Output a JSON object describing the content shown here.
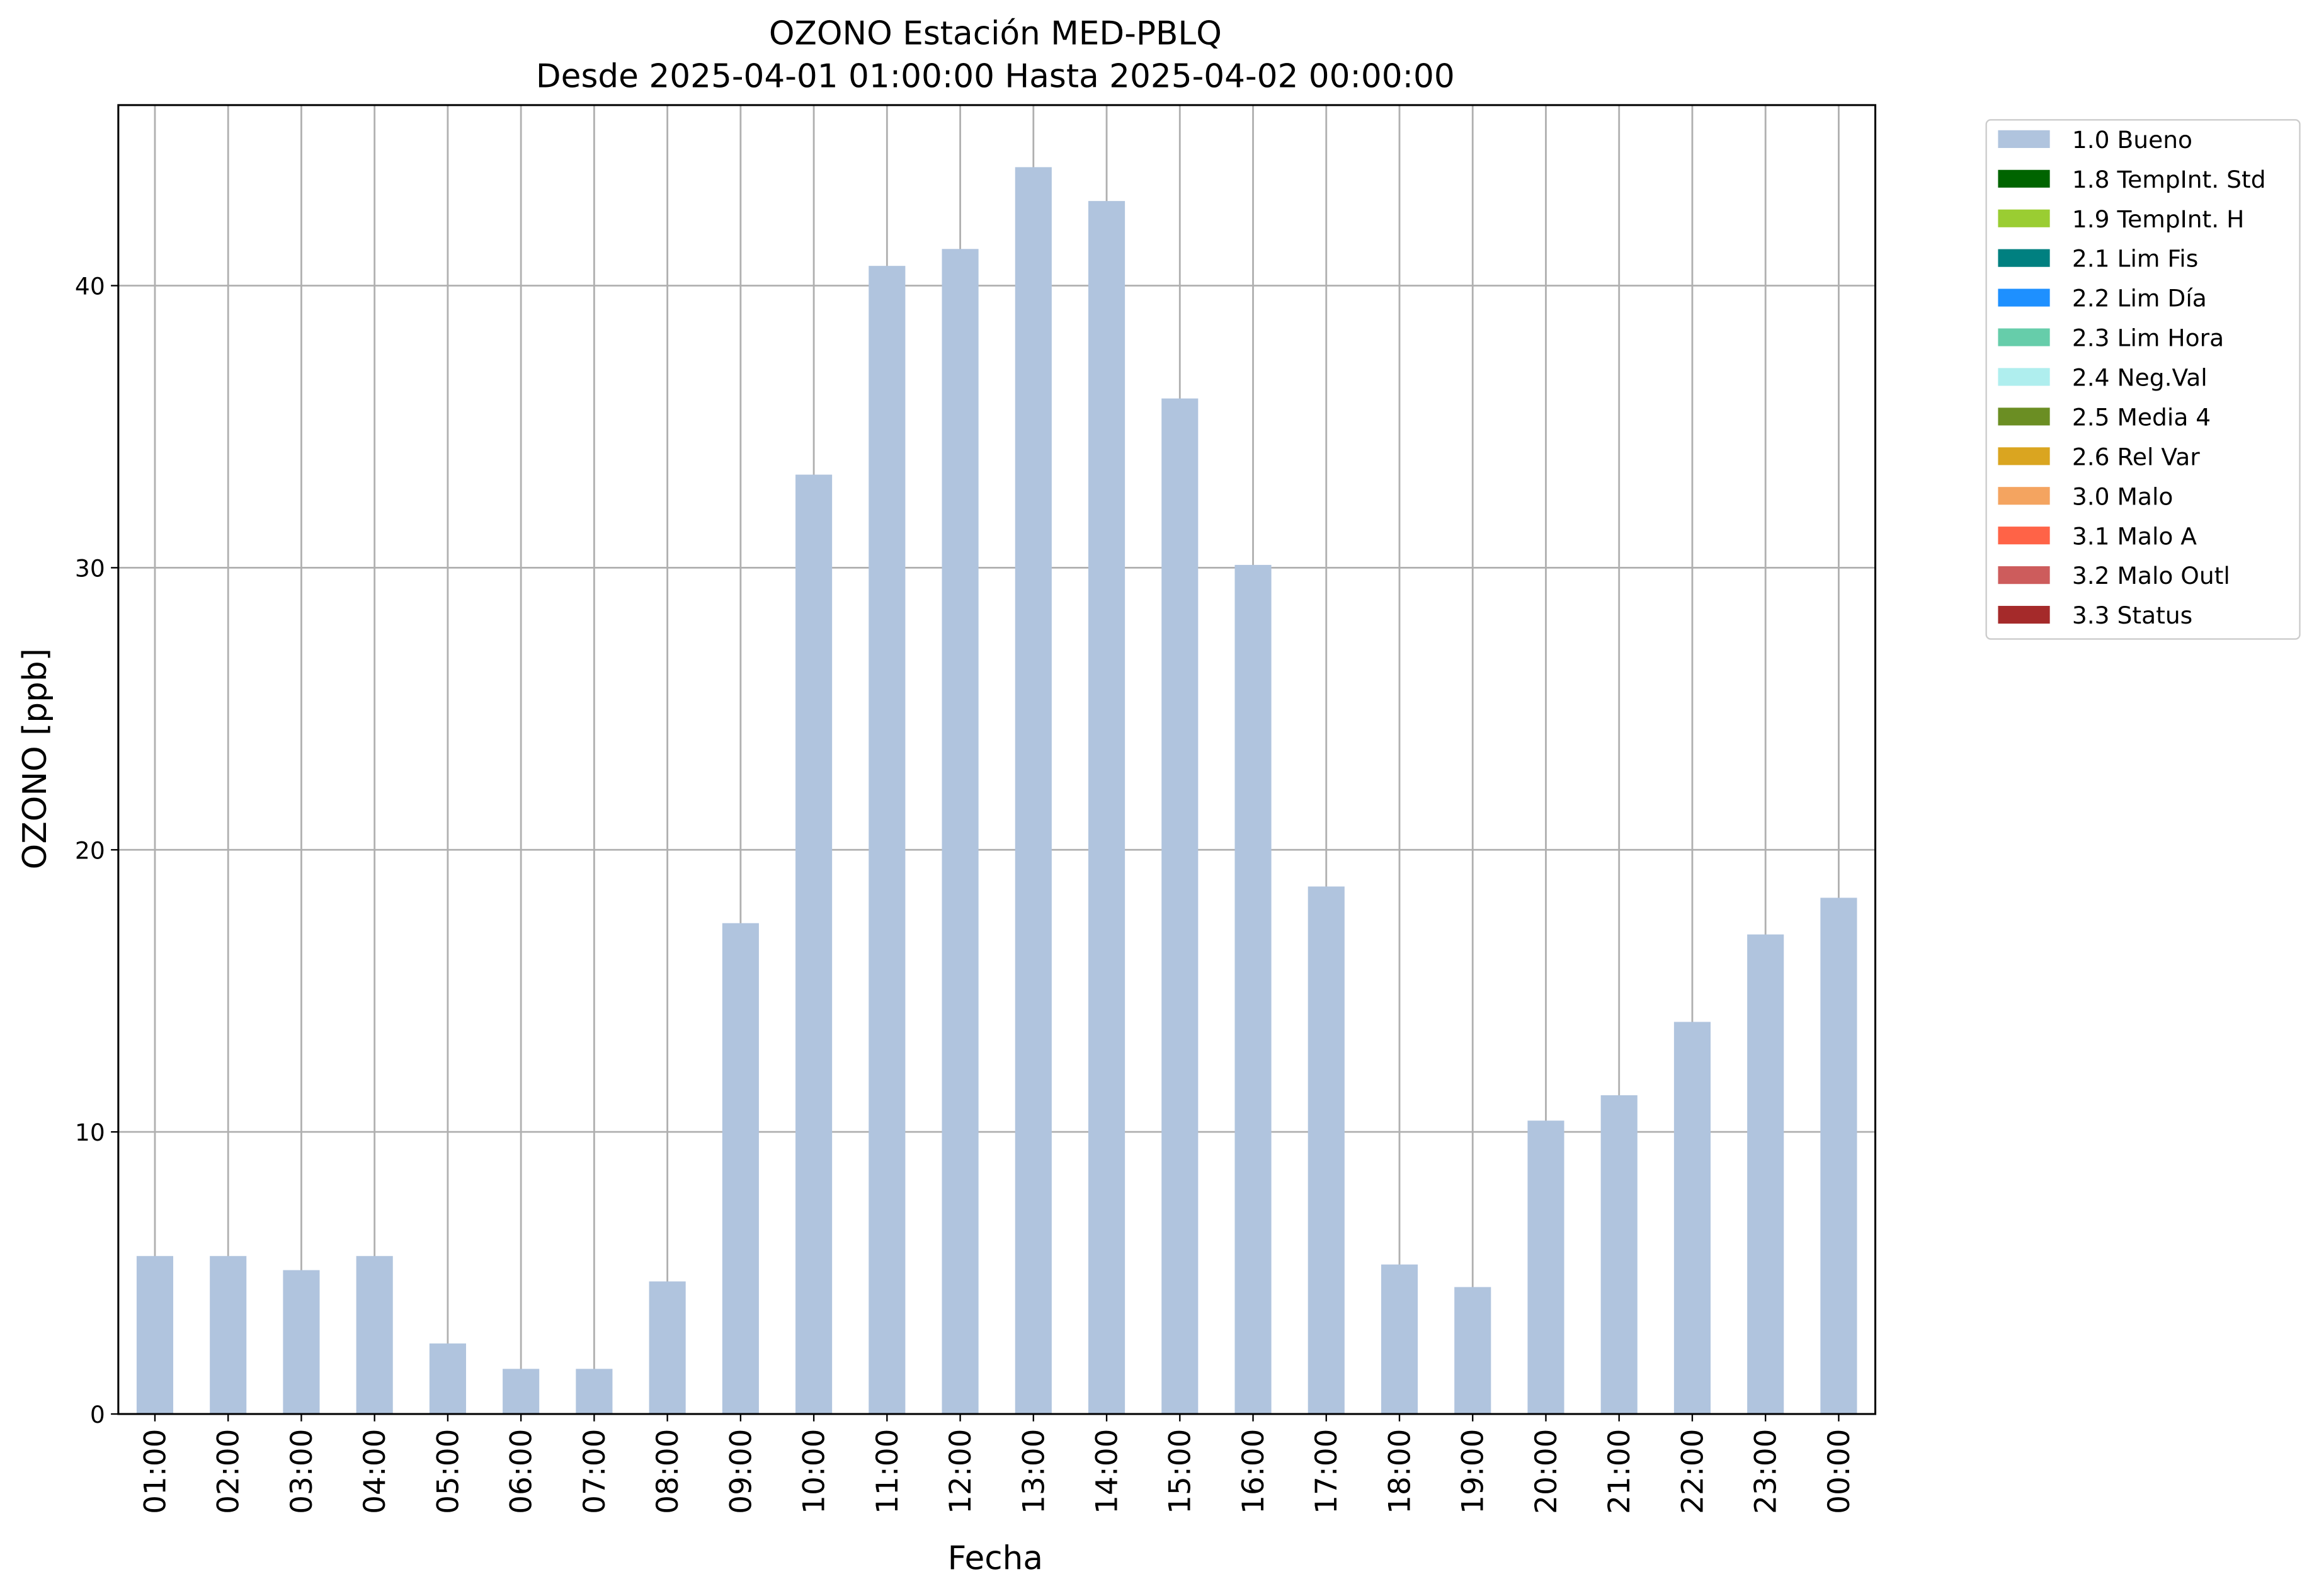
{
  "chart_data": {
    "type": "bar",
    "title": "OZONO Estación MED-PBLQ",
    "subtitle": "Desde 2025-04-01 01:00:00 Hasta 2025-04-02 00:00:00",
    "x_label": "Fecha",
    "y_label": "OZONO [ppb]",
    "categories": [
      "01:00",
      "02:00",
      "03:00",
      "04:00",
      "05:00",
      "06:00",
      "07:00",
      "08:00",
      "09:00",
      "10:00",
      "11:00",
      "12:00",
      "13:00",
      "14:00",
      "15:00",
      "16:00",
      "17:00",
      "18:00",
      "19:00",
      "20:00",
      "21:00",
      "22:00",
      "23:00",
      "00:00"
    ],
    "series": [
      {
        "name": "1.0 Bueno",
        "color": "#b0c4de",
        "values": [
          5.6,
          5.6,
          5.1,
          5.6,
          2.5,
          1.6,
          1.6,
          4.7,
          17.4,
          33.3,
          40.7,
          41.3,
          44.2,
          43.0,
          36.0,
          30.1,
          18.7,
          5.3,
          4.5,
          10.4,
          11.3,
          13.9,
          17.0,
          18.3
        ]
      },
      {
        "name": "1.8 TempInt. Std",
        "color": "#006400"
      },
      {
        "name": "1.9 TempInt. H",
        "color": "#9acd32"
      },
      {
        "name": "2.1 Lim Fis",
        "color": "#008080"
      },
      {
        "name": "2.2 Lim Día",
        "color": "#1e90ff"
      },
      {
        "name": "2.3 Lim Hora",
        "color": "#66cdaa"
      },
      {
        "name": "2.4 Neg.Val",
        "color": "#afeeee"
      },
      {
        "name": "2.5 Media 4",
        "color": "#6b8e23"
      },
      {
        "name": "2.6 Rel Var",
        "color": "#daa520"
      },
      {
        "name": "3.0 Malo",
        "color": "#f4a460"
      },
      {
        "name": "3.1 Malo A",
        "color": "#ff6347"
      },
      {
        "name": "3.2 Malo Outl",
        "color": "#cd5c5c"
      },
      {
        "name": "3.3 Status",
        "color": "#a52a2a"
      }
    ],
    "ylim": [
      0,
      46.4
    ],
    "yticks": [
      0,
      10,
      20,
      30,
      40
    ],
    "grid": true,
    "legend": "outside-upper-right"
  }
}
